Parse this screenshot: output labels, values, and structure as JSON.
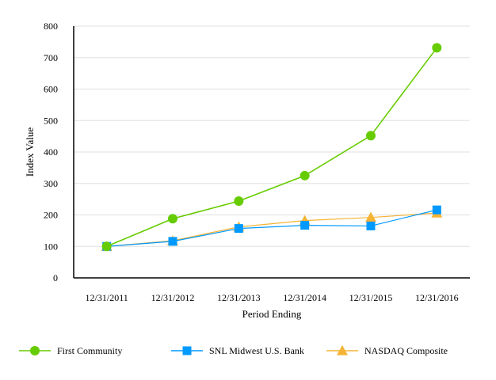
{
  "chart_data": {
    "type": "line",
    "categories": [
      "12/31/2011",
      "12/31/2012",
      "12/31/2013",
      "12/31/2014",
      "12/31/2015",
      "12/31/2016"
    ],
    "xlabel": "Period Ending",
    "ylabel": "Index Value",
    "ylim": [
      0,
      800
    ],
    "yticks": [
      0,
      100,
      200,
      300,
      400,
      500,
      600,
      700,
      800
    ],
    "grid": "horizontal",
    "legend_position": "bottom",
    "series": [
      {
        "name": "First Community",
        "values": [
          100,
          188,
          244,
          325,
          452,
          731
        ],
        "color": "#66cc00",
        "marker": "circle"
      },
      {
        "name": "SNL Midwest U.S. Bank",
        "values": [
          100,
          116,
          157,
          167,
          165,
          216
        ],
        "color": "#0099ff",
        "marker": "square"
      },
      {
        "name": "NASDAQ Composite",
        "values": [
          100,
          118,
          162,
          182,
          192,
          206
        ],
        "color": "#f5b335",
        "marker": "triangle"
      }
    ]
  }
}
